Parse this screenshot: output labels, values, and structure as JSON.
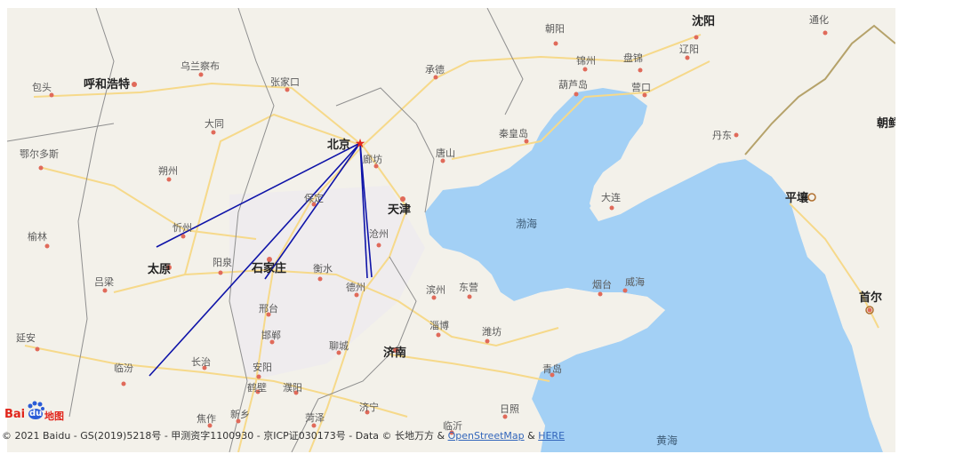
{
  "cities": {
    "beijing": "北京",
    "tianjin": "天津",
    "shijiazhuang": "石家庄",
    "taiyuan": "太原",
    "jinan": "济南",
    "shenyang": "沈阳",
    "pyongyang": "平壤",
    "seoul": "首尔",
    "hohhot": "呼和浩特",
    "baotou": "包头",
    "ulanqab": "乌兰察布",
    "zhangjiakou": "张家口",
    "chengde": "承德",
    "chaoyang": "朝阳",
    "jinzhou": "锦州",
    "panjin": "盘锦",
    "liaoyang": "辽阳",
    "tonghua": "通化",
    "huludao": "葫芦岛",
    "yingkou": "营口",
    "qinhuangdao": "秦皇岛",
    "tangshan": "唐山",
    "langfang": "廊坊",
    "dalian": "大连",
    "dandong": "丹东",
    "datong": "大同",
    "shuozhou": "朔州",
    "xinzhou": "忻州",
    "ordos": "鄂尔多斯",
    "yulin": "榆林",
    "luliang": "吕梁",
    "yangquan": "阳泉",
    "baoding": "保定",
    "cangzhou": "沧州",
    "hengshui": "衡水",
    "dezhou": "德州",
    "binzhou": "滨州",
    "dongying": "东营",
    "yantai": "烟台",
    "weihai": "威海",
    "xingtai": "邢台",
    "handan": "邯郸",
    "liaocheng": "聊城",
    "zibo": "淄博",
    "weifang": "潍坊",
    "yanan": "延安",
    "linfen": "临汾",
    "changzhi": "长治",
    "anyang": "安阳",
    "hebi": "鹤壁",
    "puyang": "濮阳",
    "jiaozuo": "焦作",
    "xinxiang": "新乡",
    "heze": "菏泽",
    "jining": "济宁",
    "linyi": "临沂",
    "rizhao": "日照",
    "qingdao": "青岛",
    "chaoxian": "朝鲜"
  },
  "seas": {
    "bohai": "渤海",
    "huanghai": "黄海"
  },
  "logo": {
    "bai": "Bai",
    "du": "du",
    "map": "地图"
  },
  "copyright": {
    "prefix": "© 2021 Baidu - GS(2019)5218号 - 甲测资字1100930 - 京ICP证030173号 - Data © 长地万方 & ",
    "osm": "OpenStreetMap",
    "amp": " & ",
    "here": "HERE"
  },
  "colors": {
    "land": "#f3f1ea",
    "sea": "#a3d0f5",
    "road": "#f6d98a",
    "border": "#8f8f8f",
    "route": "#0e13a8",
    "city_dot": "#e06a5a"
  }
}
